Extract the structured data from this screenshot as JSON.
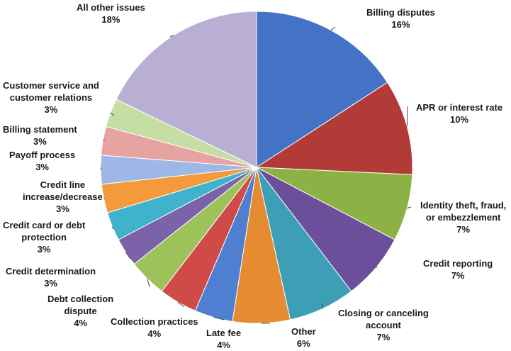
{
  "chart_data": {
    "type": "pie",
    "title": "",
    "slices": [
      {
        "label": [
          "Billing disputes"
        ],
        "value": 16,
        "value_label": "16%",
        "color": "#4472C4"
      },
      {
        "label": [
          "APR or interest rate"
        ],
        "value": 10,
        "value_label": "10%",
        "color": "#B23B38"
      },
      {
        "label": [
          "Identity theft, fraud,",
          "or embezzlement"
        ],
        "value": 7,
        "value_label": "7%",
        "color": "#8CB245"
      },
      {
        "label": [
          "Credit reporting"
        ],
        "value": 7,
        "value_label": "7%",
        "color": "#6C4F9A"
      },
      {
        "label": [
          "Closing or canceling",
          "account"
        ],
        "value": 7,
        "value_label": "7%",
        "color": "#3D9FB5"
      },
      {
        "label": [
          "Other"
        ],
        "value": 6,
        "value_label": "6%",
        "color": "#E58B31"
      },
      {
        "label": [
          "Late fee"
        ],
        "value": 4,
        "value_label": "4%",
        "color": "#4F7FD0"
      },
      {
        "label": [
          "Collection practices"
        ],
        "value": 4,
        "value_label": "4%",
        "color": "#D04A47"
      },
      {
        "label": [
          "Debt collection",
          "dispute"
        ],
        "value": 4,
        "value_label": "4%",
        "color": "#9DC25A"
      },
      {
        "label": [
          "Credit determination"
        ],
        "value": 3,
        "value_label": "3%",
        "color": "#7C62A8"
      },
      {
        "label": [
          "Credit card or debt",
          "protection"
        ],
        "value": 3,
        "value_label": "3%",
        "color": "#40B3CC"
      },
      {
        "label": [
          "Credit line",
          "increase/decrease"
        ],
        "value": 3,
        "value_label": "3%",
        "color": "#F39A3D"
      },
      {
        "label": [
          "Payoff process"
        ],
        "value": 3,
        "value_label": "3%",
        "color": "#9DB8E6"
      },
      {
        "label": [
          "Billing statement"
        ],
        "value": 3,
        "value_label": "3%",
        "color": "#E6A3A2"
      },
      {
        "label": [
          "Customer service and",
          "customer relations"
        ],
        "value": 3,
        "value_label": "3%",
        "color": "#C5DEA3"
      },
      {
        "label": [
          "All other issues"
        ],
        "value": 18,
        "value_label": "18%",
        "color": "#B9AFD4"
      }
    ]
  }
}
